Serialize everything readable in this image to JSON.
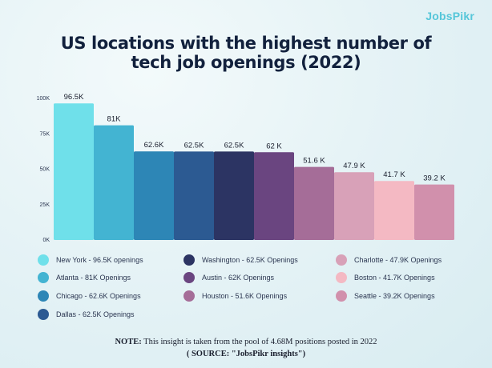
{
  "brand": "JobsPikr",
  "title_lines": [
    "US locations with the highest number of",
    "tech job openings (2022)"
  ],
  "note_label": "NOTE:",
  "note_text": " This insight is taken from the pool of 4.68M positions posted in 2022",
  "source": "( SOURCE: \"JobsPikr insights\")",
  "chart_data": {
    "type": "bar",
    "title": "US locations with the highest number of tech job openings (2022)",
    "categories": [
      "New York",
      "Atlanta",
      "Chicago",
      "Dallas",
      "Washington",
      "Austin",
      "Houston",
      "Charlotte",
      "Boston",
      "Seattle"
    ],
    "values": [
      96.5,
      81,
      62.6,
      62.5,
      62.5,
      62,
      51.6,
      47.9,
      41.7,
      39.2
    ],
    "value_labels": [
      "96.5K",
      "81K",
      "62.6K",
      "62.5K",
      "62.5K",
      "62 K",
      "51.6 K",
      "47.9 K",
      "41.7 K",
      "39.2 K"
    ],
    "colors": [
      "#6fe0ea",
      "#43b4d2",
      "#2d86b6",
      "#2c5a92",
      "#2c3463",
      "#6a4580",
      "#a56d98",
      "#d8a1b8",
      "#f4b9c3",
      "#d190ac"
    ],
    "ylim": [
      0,
      100
    ],
    "yticks": [
      0,
      25,
      50,
      75,
      100
    ],
    "ytick_labels": [
      "0K",
      "25K",
      "50K",
      "75K",
      "100K"
    ],
    "xlabel": "",
    "ylabel": "",
    "legend": [
      "New York - 96.5K openings",
      "Atlanta - 81K  Openings",
      "Chicago - 62.6K Openings",
      "Dallas - 62.5K Openings",
      "Washington - 62.5K Openings",
      "Austin - 62K Openings",
      "Houston - 51.6K Openings",
      "Charlotte - 47.9K Openings",
      "Boston - 41.7K Openings",
      "Seattle - 39.2K Openings"
    ],
    "legend_placement": "bottom"
  }
}
